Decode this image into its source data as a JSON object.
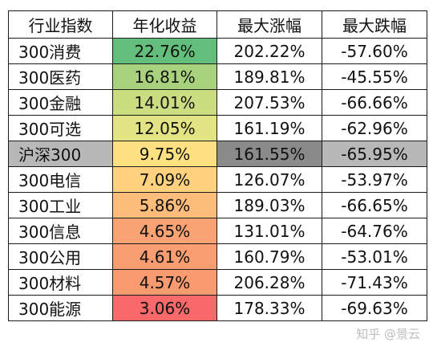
{
  "table": {
    "headers": [
      "行业指数",
      "年化收益",
      "最大涨幅",
      "最大跌幅"
    ],
    "rows": [
      {
        "name": "300消费",
        "annual": "22.76%",
        "max_gain": "202.22%",
        "max_drop": "-57.60%",
        "annual_color": "#63be7b"
      },
      {
        "name": "300医药",
        "annual": "16.81%",
        "max_gain": "189.81%",
        "max_drop": "-45.55%",
        "annual_color": "#a9d27f"
      },
      {
        "name": "300金融",
        "annual": "14.01%",
        "max_gain": "207.53%",
        "max_drop": "-66.66%",
        "annual_color": "#cbdc81"
      },
      {
        "name": "300可选",
        "annual": "12.05%",
        "max_gain": "161.19%",
        "max_drop": "-62.96%",
        "annual_color": "#e2e383"
      },
      {
        "name": "沪深300",
        "annual": "9.75%",
        "max_gain": "161.55%",
        "max_drop": "-65.95%",
        "annual_color": "#fee282"
      },
      {
        "name": "300电信",
        "annual": "7.09%",
        "max_gain": "126.07%",
        "max_drop": "-53.97%",
        "annual_color": "#fed27f"
      },
      {
        "name": "300工业",
        "annual": "5.86%",
        "max_gain": "189.03%",
        "max_drop": "-66.65%",
        "annual_color": "#fcbc7b"
      },
      {
        "name": "300信息",
        "annual": "4.65%",
        "max_gain": "131.01%",
        "max_drop": "-64.76%",
        "annual_color": "#f9a273"
      },
      {
        "name": "300公用",
        "annual": "4.61%",
        "max_gain": "160.79%",
        "max_drop": "-53.01%",
        "annual_color": "#f89e72"
      },
      {
        "name": "300材料",
        "annual": "4.57%",
        "max_gain": "206.28%",
        "max_drop": "-71.43%",
        "annual_color": "#f89b71"
      },
      {
        "name": "300能源",
        "annual": "3.06%",
        "max_gain": "178.33%",
        "max_drop": "-69.63%",
        "annual_color": "#f8696b"
      }
    ],
    "highlight_row": "沪深300",
    "highlight_color": "#b8b8b8",
    "highlight_dark_color": "#8a8a8a"
  },
  "watermark": {
    "text": "知乎 @景云"
  }
}
